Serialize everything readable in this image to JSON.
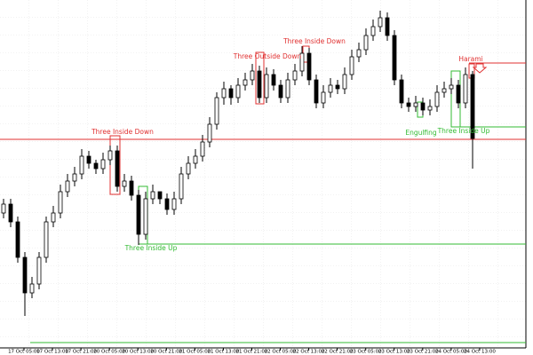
{
  "chart_data": {
    "type": "candlestick",
    "x_labels": [
      "17 Oct 05:00",
      "17 Oct 13:00",
      "17 Oct 21:00",
      "20 Oct 05:00",
      "20 Oct 13:00",
      "20 Oct 21:00",
      "21 Oct 05:00",
      "21 Oct 13:00",
      "21 Oct 21:00",
      "22 Oct 05:00",
      "22 Oct 13:00",
      "22 Oct 21:00",
      "23 Oct 05:00",
      "23 Oct 13:00",
      "23 Oct 21:00",
      "24 Oct 05:00",
      "24 Oct 13:00"
    ],
    "ylim": [
      0,
      100
    ],
    "open": [
      40,
      42.5,
      37.5,
      27.5,
      17.5,
      20,
      27.5,
      37.5,
      40,
      46,
      49,
      51,
      56,
      54,
      52.5,
      55,
      57.5,
      47.5,
      49,
      45,
      34,
      44,
      46,
      44,
      41,
      44,
      51,
      54,
      56,
      60,
      65,
      72.5,
      75,
      72.5,
      76,
      77.5,
      80,
      72.5,
      79,
      76,
      72.5,
      77.5,
      80,
      85,
      77.5,
      71,
      74,
      76,
      75,
      79,
      84,
      86,
      90,
      92.5,
      95,
      90,
      77.5,
      71,
      70,
      71,
      69,
      70,
      74,
      75,
      76,
      71,
      79
    ],
    "high": [
      44,
      44,
      39,
      29,
      22,
      29,
      39,
      42,
      48,
      51,
      53,
      58,
      57.5,
      55,
      57,
      59,
      59,
      51,
      50.5,
      46.5,
      46,
      48,
      46,
      45.5,
      46,
      53,
      56,
      58,
      62,
      67,
      74,
      77,
      76,
      78,
      79.5,
      82,
      81.5,
      81,
      80.5,
      77.5,
      79.5,
      82,
      87,
      86.5,
      79,
      76,
      78,
      77.5,
      81,
      86,
      88,
      92,
      94.5,
      97,
      96.5,
      91.5,
      79,
      72.5,
      73,
      72.5,
      72,
      76,
      77,
      78,
      77.5,
      81,
      80
    ],
    "low": [
      38.5,
      36,
      26,
      11,
      16,
      18.5,
      26,
      36,
      38.5,
      44.5,
      47.5,
      49.5,
      52.5,
      51,
      51,
      53.5,
      46,
      46,
      43.5,
      31,
      32.5,
      42.5,
      42.5,
      39.5,
      39.5,
      42.5,
      49.5,
      52.5,
      54.5,
      58.5,
      63.5,
      70.5,
      70.5,
      71,
      74.5,
      76,
      71,
      71,
      74.5,
      71,
      71,
      76,
      78.5,
      76,
      69.5,
      69.5,
      72.5,
      73.5,
      73.5,
      77.5,
      82.5,
      84.5,
      88.5,
      91,
      88.5,
      76,
      69.5,
      68.5,
      68.5,
      67.5,
      67.5,
      68.5,
      72.5,
      73.5,
      69.5,
      69.5,
      52.5
    ],
    "close": [
      42.5,
      37.5,
      27.5,
      17.5,
      20,
      27.5,
      37.5,
      40,
      46,
      49,
      51,
      56,
      54,
      52.5,
      55,
      57.5,
      47.5,
      49,
      45,
      34,
      44,
      46,
      44,
      41,
      44,
      51,
      54,
      56,
      60,
      65,
      72.5,
      75,
      72.5,
      76,
      77.5,
      80,
      72.5,
      79,
      76,
      72.5,
      77.5,
      80,
      85,
      77.5,
      71,
      74,
      76,
      75,
      79,
      84,
      86,
      90,
      92.5,
      95,
      90,
      77.5,
      71,
      70,
      71,
      69,
      70,
      74,
      75,
      76,
      71,
      79,
      61
    ],
    "up_color": "#ffffff",
    "down_color": "#000000",
    "levels": [
      {
        "value": 60.75,
        "color": "#e03030"
      },
      {
        "value": 82.25,
        "color": "#e03030"
      },
      {
        "value": 31.25,
        "color": "#33bb33"
      },
      {
        "value": 64.25,
        "color": "#33bb33"
      },
      {
        "value": 3.5,
        "color": "#33bb33"
      }
    ],
    "annotations": [
      {
        "text": "Three Inside Down",
        "color": "#e03030"
      },
      {
        "text": "Three Outside Down",
        "color": "#e03030"
      },
      {
        "text": "Three Inside Down",
        "color": "#e03030"
      },
      {
        "text": "Harami",
        "color": "#e03030"
      },
      {
        "text": "Three Inside Up",
        "color": "#33bb33"
      },
      {
        "text": "Engulfing",
        "color": "#33bb33"
      },
      {
        "text": "Three Inside Up",
        "color": "#33bb33"
      }
    ]
  }
}
